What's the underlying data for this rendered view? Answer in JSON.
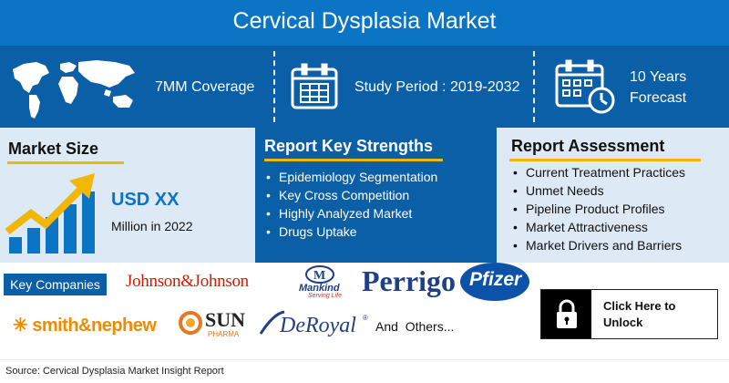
{
  "header": {
    "title": "Cervical Dysplasia Market"
  },
  "stats": {
    "coverage": "7MM Coverage",
    "study_period": "Study Period : 2019-2032",
    "forecast_line1": "10 Years",
    "forecast_line2": "Forecast"
  },
  "market_size": {
    "heading": "Market Size",
    "value": "USD XX",
    "subtext": "Million in 2022"
  },
  "strengths": {
    "heading": "Report Key Strengths",
    "items": [
      "Epidemiology Segmentation",
      "Key Cross Competition",
      "Highly Analyzed Market",
      "Drugs Uptake"
    ]
  },
  "assessment": {
    "heading": "Report Assessment",
    "items": [
      "Current Treatment Practices",
      "Unmet Needs",
      "Pipeline Product Profiles",
      "Market Attractiveness",
      "Market Drivers and Barriers"
    ]
  },
  "companies": {
    "label": "Key Companies",
    "logos": {
      "jnj": "Johnson&Johnson",
      "mankind": "Mankind",
      "mankind_tag": "Serving Life",
      "perrigo": "Perrigo",
      "pfizer": "Pfizer",
      "smith_nephew": "smith&nephew",
      "sun": "SUN",
      "sun_sub": "PHARMA",
      "deroyal": "DeRoyal",
      "deroyal_mark": "®"
    },
    "others": "And  Others..."
  },
  "cta": {
    "label": "Click Here to Unlock"
  },
  "footer": {
    "source": "Source: Cervical Dysplasia Market Insight Report"
  },
  "colors": {
    "primary": "#0b74c4",
    "dark_blue": "#0a5fa6",
    "light_panel": "#dde9f5",
    "accent": "#f2b705"
  }
}
